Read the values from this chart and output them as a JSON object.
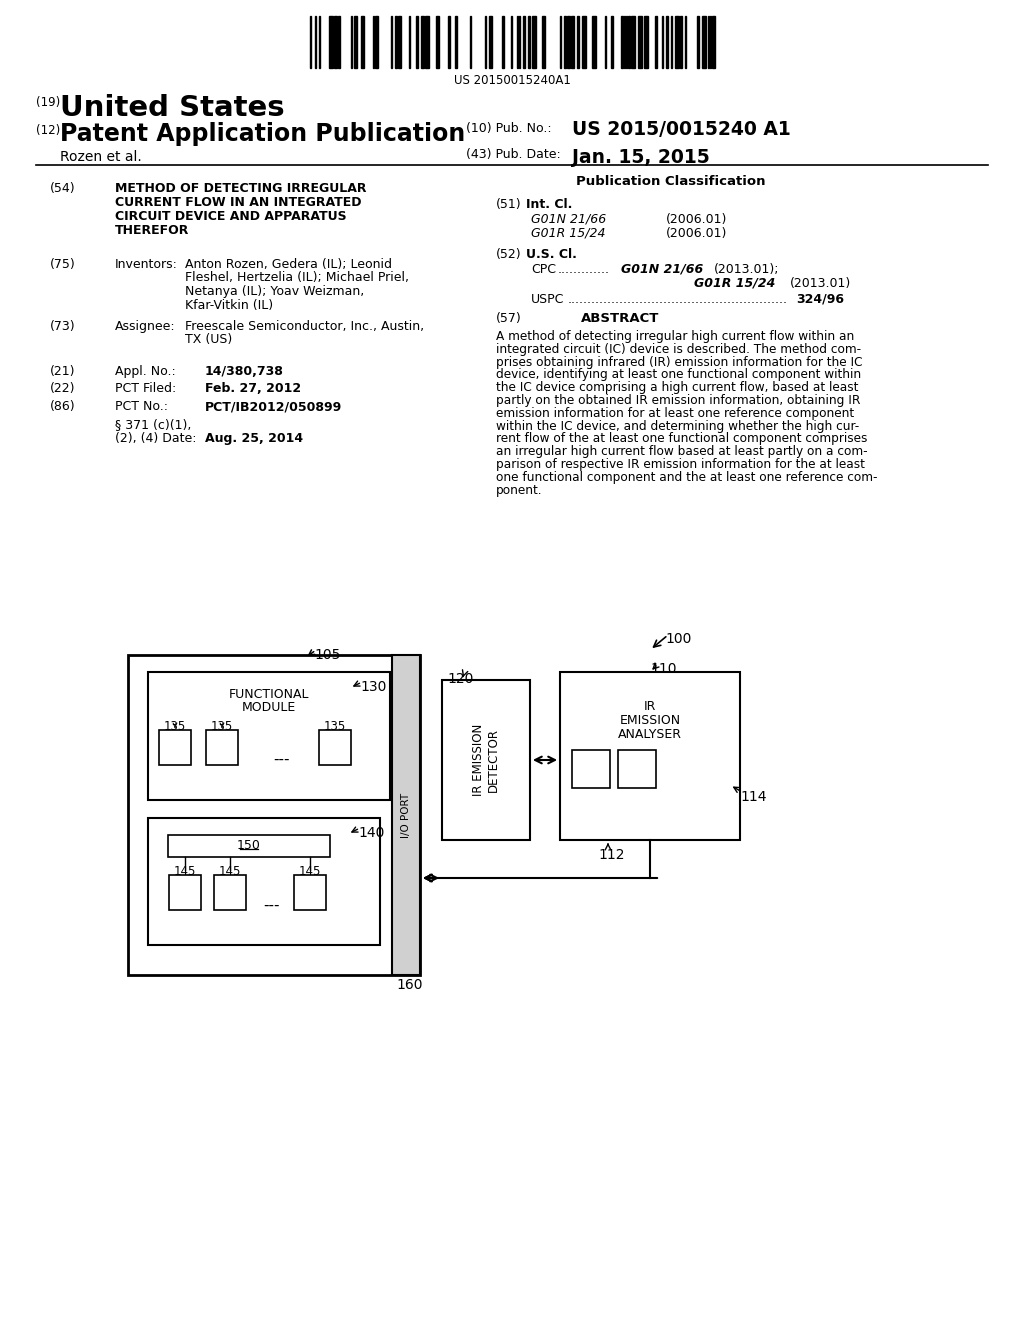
{
  "bg_color": "#ffffff",
  "barcode_text": "US 20150015240A1",
  "patent_number_label": "(19)",
  "patent_number_title": "United States",
  "patent_app_label": "(12)",
  "patent_app_title": "Patent Application Publication",
  "pub_no_label": "(10) Pub. No.:",
  "pub_no_value": "US 2015/0015240 A1",
  "pub_date_label": "(43) Pub. Date:",
  "pub_date_value": "Jan. 15, 2015",
  "inventor_label": "Rozen et al.",
  "title_num": "(54)",
  "title_lines": [
    "METHOD OF DETECTING IRREGULAR",
    "CURRENT FLOW IN AN INTEGRATED",
    "CIRCUIT DEVICE AND APPARATUS",
    "THEREFOR"
  ],
  "inventors_num": "(75)",
  "inventors_label": "Inventors:",
  "inventors_lines": [
    "Anton Rozen, Gedera (IL); Leonid",
    "Fleshel, Hertzelia (IL); Michael Priel,",
    "Netanya (IL); Yoav Weizman,",
    "Kfar-Vitkin (IL)"
  ],
  "assignee_num": "(73)",
  "assignee_label": "Assignee:",
  "assignee_lines": [
    "Freescale Semiconductor, Inc., Austin,",
    "TX (US)"
  ],
  "appl_num": "(21)",
  "appl_label": "Appl. No.:",
  "appl_value": "14/380,738",
  "pct_filed_num": "(22)",
  "pct_filed_label": "PCT Filed:",
  "pct_filed_value": "Feb. 27, 2012",
  "pct_no_num": "(86)",
  "pct_no_label": "PCT No.:",
  "pct_no_value": "PCT/IB2012/050899",
  "pct_371_line1": "§ 371 (c)(1),",
  "pct_371_line2": "(2), (4) Date:",
  "pct_371_date": "Aug. 25, 2014",
  "pub_class_title": "Publication Classification",
  "int_cl_num": "(51)",
  "int_cl_label": "Int. Cl.",
  "int_cl_g01n": "G01N 21/66",
  "int_cl_g01n_date": "(2006.01)",
  "int_cl_g01r": "G01R 15/24",
  "int_cl_g01r_date": "(2006.01)",
  "us_cl_num": "(52)",
  "us_cl_label": "U.S. Cl.",
  "uspc_value": "324/96",
  "abstract_num": "(57)",
  "abstract_title": "ABSTRACT",
  "abstract_lines": [
    "A method of detecting irregular high current flow within an",
    "integrated circuit (IC) device is described. The method com-",
    "prises obtaining infrared (IR) emission information for the IC",
    "device, identifying at least one functional component within",
    "the IC device comprising a high current flow, based at least",
    "partly on the obtained IR emission information, obtaining IR",
    "emission information for at least one reference component",
    "within the IC device, and determining whether the high cur-",
    "rent flow of the at least one functional component comprises",
    "an irregular high current flow based at least partly on a com-",
    "parison of respective IR emission information for the at least",
    "one functional component and the at least one reference com-",
    "ponent."
  ]
}
